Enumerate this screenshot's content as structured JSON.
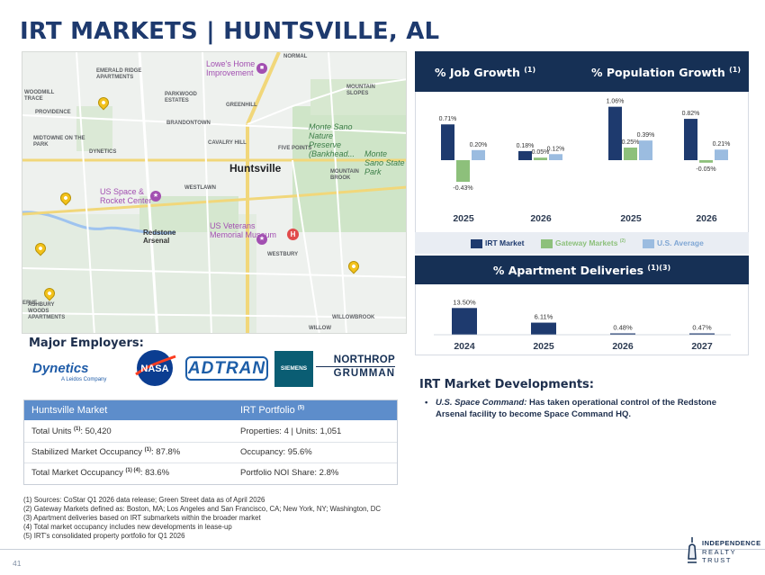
{
  "title": "IRT MARKETS | HUNTSVILLE, AL",
  "map": {
    "city": "Huntsville",
    "labels": [
      "NORMAL",
      "EMERALD RIDGE APARTMENTS",
      "WOODMILL TRACE",
      "PROVIDENCE",
      "PARKWOOD ESTATES",
      "GREENHILL",
      "MIDTOWNE ON THE PARK",
      "DYNETICS",
      "BRANDONTOWN",
      "CAVALRY HILL",
      "FIVE POINTS",
      "MOUNTAIN BROOK",
      "MOUNTAIN SLOPES",
      "WESTLAWN",
      "WESTBURY",
      "ASHBURY WOODS APARTMENTS",
      "WILLOWBROOK",
      "WILLOW",
      "ERVE"
    ],
    "green_labels": [
      "Monte Sano Nature Preserve (Bankhead...",
      "Monte Sano State Park"
    ],
    "arsenal": "Redstone Arsenal",
    "pois": [
      "Lowe's Home Improvement",
      "US Space & Rocket Center",
      "US Veterans Memorial Museum"
    ],
    "icons": [
      "pin-icon",
      "store-icon",
      "museum-icon",
      "hospital-icon"
    ]
  },
  "growth": {
    "job_title": "% Job Growth",
    "job_sup": "(1)",
    "pop_title": "% Population Growth",
    "pop_sup": "(1)"
  },
  "legend": [
    {
      "label": "IRT Market",
      "color": "#1e3a6e"
    },
    {
      "label": "Gateway Markets",
      "sup": "(2)",
      "color": "#8dc07b"
    },
    {
      "label": "U.S. Average",
      "color": "#9bbce0"
    }
  ],
  "chart_data": [
    {
      "type": "bar",
      "title": "% Job Growth (1)",
      "categories": [
        "2025",
        "2026"
      ],
      "series": [
        {
          "name": "IRT Market",
          "values": [
            0.71,
            0.18
          ],
          "labels": [
            "0.71%",
            "0.18%"
          ]
        },
        {
          "name": "Gateway Markets",
          "values": [
            -0.43,
            0.05
          ],
          "labels": [
            "-0.43%",
            "0.05%"
          ]
        },
        {
          "name": "U.S. Average",
          "values": [
            0.2,
            0.12
          ],
          "labels": [
            "0.20%",
            "0.12%"
          ]
        }
      ],
      "ylim": [
        -0.5,
        1.1
      ]
    },
    {
      "type": "bar",
      "title": "% Population Growth (1)",
      "categories": [
        "2025",
        "2026"
      ],
      "series": [
        {
          "name": "IRT Market",
          "values": [
            1.06,
            0.82
          ],
          "labels": [
            "1.06%",
            "0.82%"
          ]
        },
        {
          "name": "Gateway Markets",
          "values": [
            0.25,
            -0.05
          ],
          "labels": [
            "0.25%",
            "-0.05%"
          ]
        },
        {
          "name": "U.S. Average",
          "values": [
            0.39,
            0.21
          ],
          "labels": [
            "0.39%",
            "0.21%"
          ]
        }
      ],
      "ylim": [
        -0.5,
        1.1
      ]
    },
    {
      "type": "bar",
      "title": "% Apartment Deliveries (1)(3)",
      "categories": [
        "2024",
        "2025",
        "2026",
        "2027"
      ],
      "series": [
        {
          "name": "IRT Market",
          "values": [
            13.5,
            6.11,
            0.48,
            0.47
          ],
          "labels": [
            "13.50%",
            "6.11%",
            "0.48%",
            "0.47%"
          ]
        }
      ],
      "ylim": [
        0,
        14
      ]
    }
  ],
  "deliveries": {
    "title": "% Apartment Deliveries",
    "sup": "(1)(3)"
  },
  "employers": {
    "title": "Major Employers:",
    "logos": [
      "Dynetics",
      "A Leidos Company",
      "NASA",
      "ADTRAN",
      "SIEMENS",
      "NORTHROP",
      "GRUMMAN"
    ]
  },
  "table": {
    "headers": {
      "left": "Huntsville Market",
      "right": "IRT Portfolio",
      "right_sup": "(5)"
    },
    "rows": [
      {
        "left": "Total Units",
        "left_sup": "(1)",
        "left_val": ": 50,420",
        "right": "Properties: 4 | Units: 1,051"
      },
      {
        "left": "Stabilized Market Occupancy",
        "left_sup": "(1)",
        "left_val": ": 87.8%",
        "right": "Occupancy: 95.6%"
      },
      {
        "left": "Total Market Occupancy",
        "left_sup": "(1) (4)",
        "left_val": ": 83.6%",
        "right": "Portfolio NOI Share: 2.8%"
      }
    ]
  },
  "developments": {
    "title": "IRT Market Developments:",
    "bullet": "•",
    "item_bold": "U.S. Space Command:",
    "item_text": " Has taken operational control of the Redstone Arsenal facility to become Space Command HQ."
  },
  "footnotes": [
    "(1)  Sources: CoStar Q1 2026 data release; Green Street data as of April 2026",
    "(2)  Gateway Markets defined as: Boston, MA; Los Angeles and San Francisco, CA; New York, NY; Washington, DC",
    "(3)  Apartment deliveries based on IRT submarkets within the broader market",
    "(4)  Total market occupancy includes new developments in lease-up",
    "(5)  IRT's consolidated property portfolio for Q1 2026"
  ],
  "page_number": "41",
  "company": {
    "line1": "INDEPENDENCE",
    "line2": "REALTY TRUST"
  }
}
